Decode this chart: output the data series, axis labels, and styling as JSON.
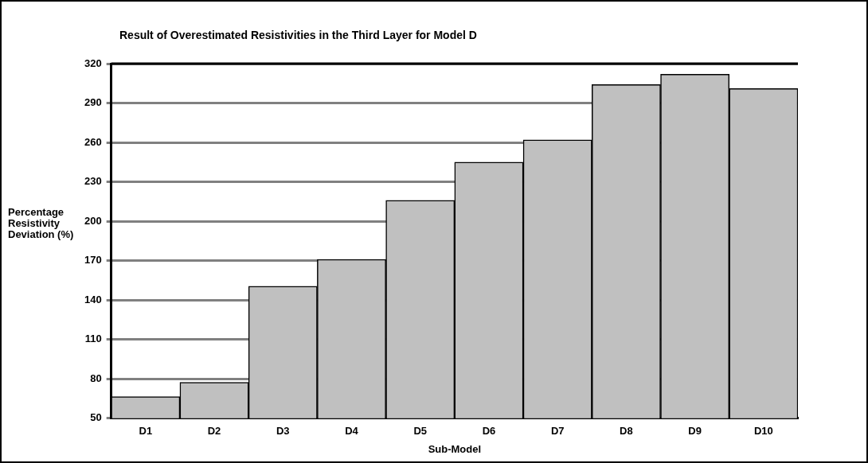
{
  "chart_data": {
    "type": "bar",
    "title": "Result of Overestimated Resistivities in the Third Layer for Model D",
    "xlabel": "Sub-Model",
    "ylabel": "Percentage Resistivity Deviation (%)",
    "categories": [
      "D1",
      "D2",
      "D3",
      "D4",
      "D5",
      "D6",
      "D7",
      "D8",
      "D9",
      "D10"
    ],
    "values": [
      66.5,
      77.4,
      150.5,
      171,
      216,
      245,
      262,
      304,
      312,
      301
    ],
    "color": "#c0c0c0",
    "ylim": [
      50,
      320
    ],
    "yticks": [
      50,
      80,
      110,
      140,
      170,
      200,
      230,
      260,
      290,
      320
    ],
    "grid": "y",
    "legend": false
  }
}
